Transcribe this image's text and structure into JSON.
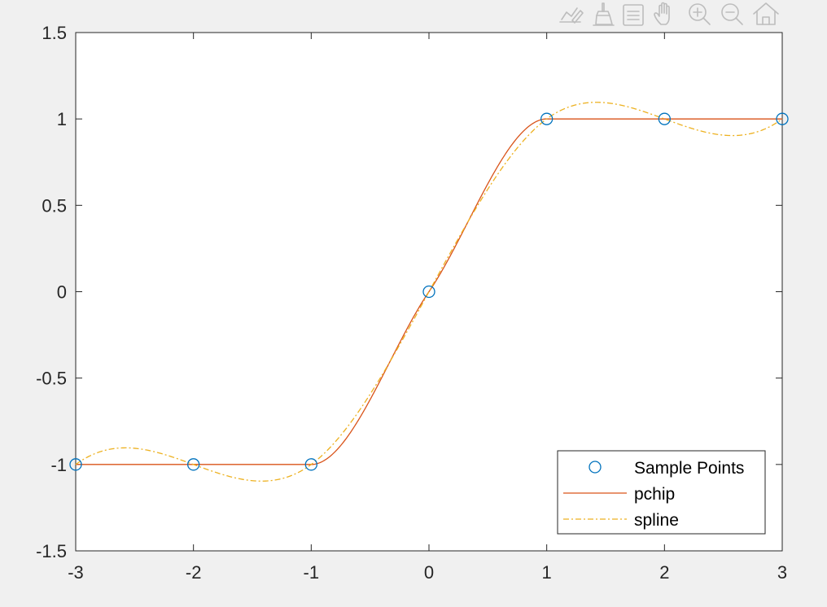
{
  "toolbar": {
    "buttons": [
      {
        "name": "edit-plot-icon",
        "icon": "pencil-chart"
      },
      {
        "name": "data-brush-icon",
        "icon": "brush"
      },
      {
        "name": "legend-toggle-icon",
        "icon": "list-box"
      },
      {
        "name": "pan-icon",
        "icon": "hand"
      },
      {
        "name": "zoom-in-icon",
        "icon": "magnifier-plus"
      },
      {
        "name": "zoom-out-icon",
        "icon": "magnifier-minus"
      },
      {
        "name": "home-icon",
        "icon": "house"
      }
    ],
    "color": "#bdbdbd"
  },
  "chart_data": {
    "type": "line",
    "xlim": [
      -3,
      3
    ],
    "ylim": [
      -1.5,
      1.5
    ],
    "xticks": [
      -3,
      -2,
      -1,
      0,
      1,
      2,
      3
    ],
    "yticks": [
      -1.5,
      -1,
      -0.5,
      0,
      0.5,
      1,
      1.5
    ],
    "xtick_labels": [
      "-3",
      "-2",
      "-1",
      "0",
      "1",
      "2",
      "3"
    ],
    "ytick_labels": [
      "-1.5",
      "-1",
      "-0.5",
      "0",
      "0.5",
      "1",
      "1.5"
    ],
    "grid": false,
    "legend_position": "bottom-right",
    "series": [
      {
        "name": "Sample Points",
        "style": "markers",
        "marker": "circle",
        "color": "#0072bd",
        "x": [
          -3,
          -2,
          -1,
          0,
          1,
          2,
          3
        ],
        "y": [
          -1,
          -1,
          -1,
          0,
          1,
          1,
          1
        ]
      },
      {
        "name": "pchip",
        "style": "solid",
        "color": "#d95319",
        "x": [
          -3,
          -2,
          -1,
          0,
          1,
          2,
          3
        ],
        "y": [
          -1,
          -1,
          -1,
          0,
          1,
          1,
          1
        ]
      },
      {
        "name": "spline",
        "style": "dash-dot",
        "color": "#edb120",
        "x": [
          -3,
          -2,
          -1,
          0,
          1,
          2,
          3
        ],
        "y": [
          -1,
          -1,
          -1,
          0,
          1,
          1,
          1
        ]
      }
    ]
  }
}
